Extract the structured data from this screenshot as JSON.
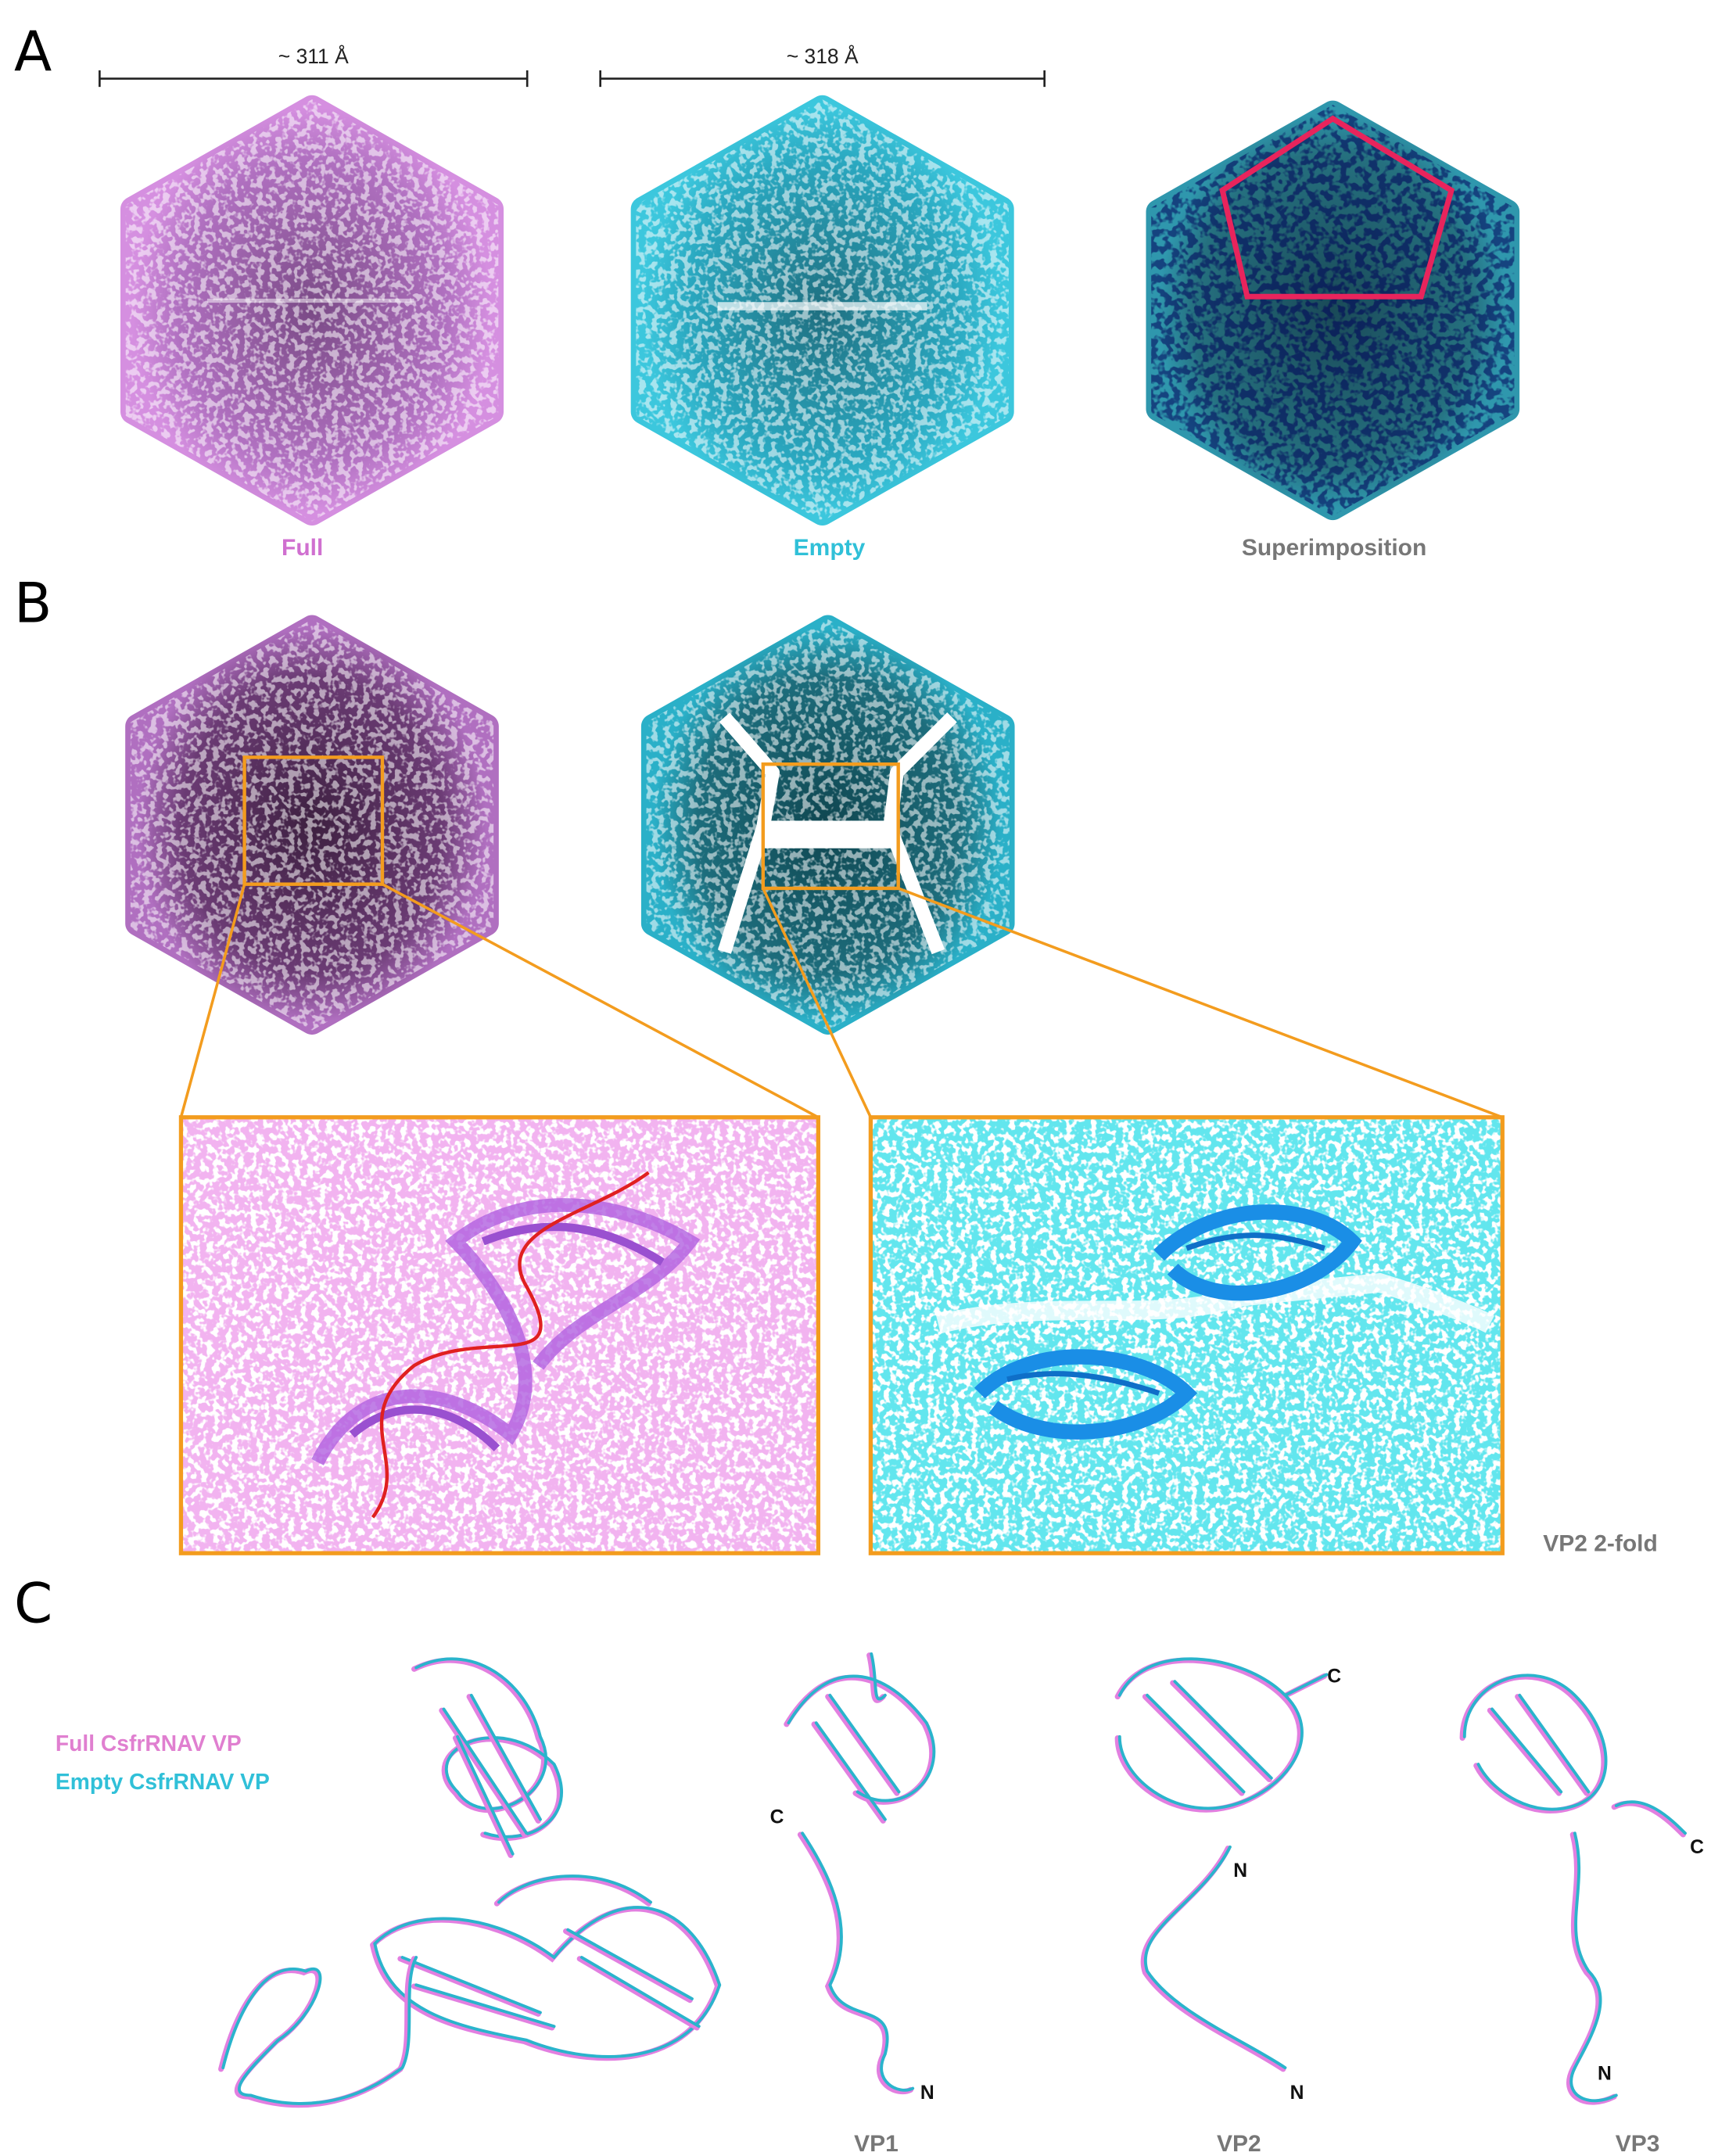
{
  "panel_labels": [
    "A",
    "B",
    "C"
  ],
  "panel_a": {
    "scale_bars": [
      "~ 311 Å",
      "~ 318 Å"
    ],
    "captions": [
      "Full",
      "Empty",
      "Superimposition"
    ]
  },
  "panel_b": {
    "caption": "VP2 2-fold"
  },
  "panel_c": {
    "legend": [
      "Full CsfrRNAV VP",
      "Empty CsfrRNAV VP"
    ],
    "captions": [
      "VP1",
      "VP2",
      "VP3"
    ],
    "termini": [
      "C",
      "N",
      "C",
      "N",
      "N",
      "C",
      "N"
    ]
  }
}
